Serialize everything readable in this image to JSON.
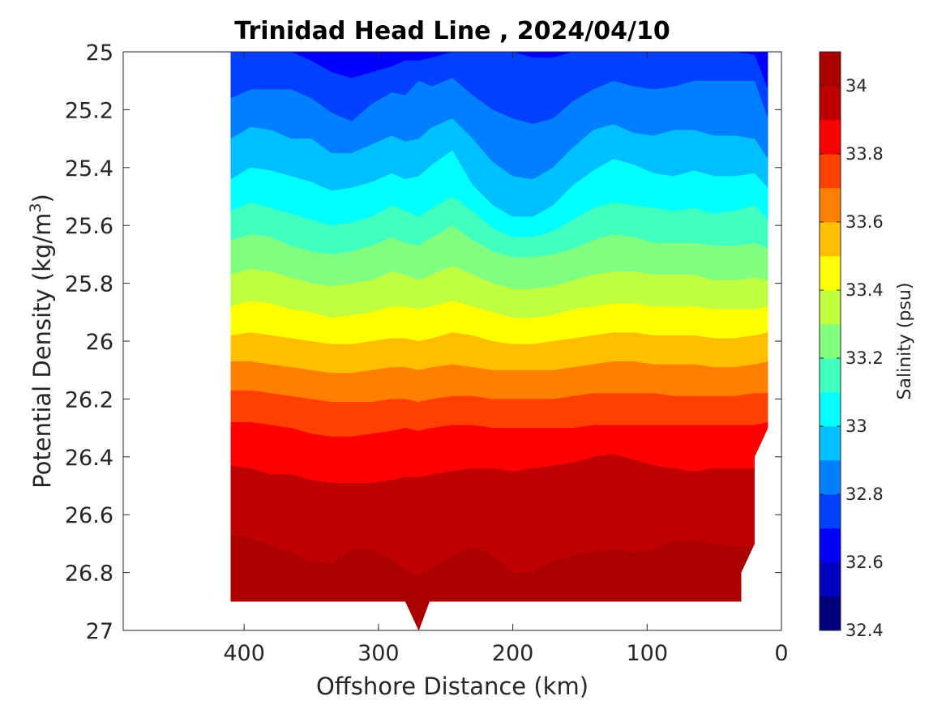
{
  "chart_data": {
    "type": "heatmap",
    "subtype": "filled-contour",
    "title": "Trinidad Head Line , 2024/04/10",
    "xlabel": "Offshore Distance (km)",
    "ylabel_main": "Potential Density (kg/m",
    "ylabel_sup": "3",
    "ylabel_close": ")",
    "x_reversed": true,
    "y_reversed": true,
    "xlim": [
      490,
      0
    ],
    "ylim": [
      25,
      27
    ],
    "xticks": [
      400,
      300,
      200,
      100,
      0
    ],
    "yticks": [
      25,
      25.2,
      25.4,
      25.6,
      25.8,
      26,
      26.2,
      26.4,
      26.6,
      26.8,
      27
    ],
    "data_extent_x": [
      410,
      10
    ],
    "data_bottom_density": 26.9,
    "colorbar": {
      "label": "Salinity (psu)",
      "levels": [
        32.4,
        32.5,
        32.6,
        32.7,
        32.8,
        32.9,
        33.0,
        33.1,
        33.2,
        33.3,
        33.4,
        33.5,
        33.6,
        33.7,
        33.8,
        33.9,
        34.0,
        34.1
      ],
      "ticks": [
        32.4,
        32.6,
        32.8,
        33,
        33.2,
        33.4,
        33.6,
        33.8,
        34
      ],
      "colors": [
        "#00007f",
        "#0000bf",
        "#0000ff",
        "#0040ff",
        "#0080ff",
        "#00bfff",
        "#00ffff",
        "#40ffbf",
        "#80ff80",
        "#bfff40",
        "#ffff00",
        "#ffbf00",
        "#ff8000",
        "#ff4000",
        "#ff0000",
        "#bf0000",
        "#aa0000"
      ]
    },
    "x_stations": [
      410,
      395,
      380,
      365,
      350,
      335,
      320,
      305,
      290,
      280,
      270,
      260,
      245,
      230,
      215,
      200,
      185,
      170,
      155,
      140,
      125,
      110,
      95,
      80,
      65,
      50,
      35,
      20,
      10
    ],
    "contours": [
      {
        "level": 32.7,
        "y": [
          25.0,
          25.0,
          25.0,
          25.0,
          25.03,
          25.07,
          25.09,
          25.07,
          25.05,
          25.03,
          25.03,
          25.02,
          25.0,
          25.0,
          25.0,
          25.0,
          25.02,
          25.02,
          25.0,
          25.0,
          25.0,
          25.0,
          25.0,
          25.0,
          25.0,
          25.0,
          25.0,
          25.01,
          25.13
        ]
      },
      {
        "level": 32.8,
        "y": [
          25.16,
          25.13,
          25.13,
          25.13,
          25.16,
          25.21,
          25.24,
          25.18,
          25.14,
          25.15,
          25.1,
          25.12,
          25.09,
          25.15,
          25.2,
          25.23,
          25.25,
          25.23,
          25.17,
          25.13,
          25.1,
          25.12,
          25.13,
          25.12,
          25.1,
          25.1,
          25.1,
          25.1,
          25.23
        ]
      },
      {
        "level": 32.9,
        "y": [
          25.3,
          25.26,
          25.27,
          25.3,
          25.3,
          25.35,
          25.35,
          25.32,
          25.29,
          25.31,
          25.3,
          25.26,
          25.23,
          25.3,
          25.38,
          25.43,
          25.44,
          25.4,
          25.33,
          25.27,
          25.25,
          25.28,
          25.29,
          25.27,
          25.27,
          25.29,
          25.29,
          25.3,
          25.37
        ]
      },
      {
        "level": 33.0,
        "y": [
          25.44,
          25.4,
          25.41,
          25.43,
          25.45,
          25.48,
          25.47,
          25.45,
          25.42,
          25.44,
          25.43,
          25.39,
          25.34,
          25.46,
          25.53,
          25.57,
          25.57,
          25.53,
          25.46,
          25.41,
          25.37,
          25.39,
          25.42,
          25.43,
          25.41,
          25.43,
          25.43,
          25.42,
          25.47
        ]
      },
      {
        "level": 33.1,
        "y": [
          25.55,
          25.52,
          25.54,
          25.56,
          25.58,
          25.6,
          25.59,
          25.57,
          25.53,
          25.55,
          25.57,
          25.54,
          25.5,
          25.55,
          25.61,
          25.64,
          25.64,
          25.62,
          25.58,
          25.54,
          25.52,
          25.53,
          25.54,
          25.55,
          25.54,
          25.56,
          25.55,
          25.53,
          25.58
        ]
      },
      {
        "level": 33.2,
        "y": [
          25.65,
          25.63,
          25.64,
          25.67,
          25.69,
          25.7,
          25.69,
          25.67,
          25.64,
          25.66,
          25.67,
          25.64,
          25.6,
          25.65,
          25.69,
          25.71,
          25.71,
          25.7,
          25.68,
          25.65,
          25.63,
          25.64,
          25.66,
          25.66,
          25.66,
          25.67,
          25.67,
          25.66,
          25.68
        ]
      },
      {
        "level": 33.3,
        "y": [
          25.77,
          25.75,
          25.76,
          25.78,
          25.8,
          25.81,
          25.8,
          25.79,
          25.76,
          25.77,
          25.79,
          25.77,
          25.74,
          25.77,
          25.8,
          25.82,
          25.82,
          25.81,
          25.79,
          25.77,
          25.76,
          25.76,
          25.77,
          25.77,
          25.77,
          25.79,
          25.79,
          25.78,
          25.79
        ]
      },
      {
        "level": 33.4,
        "y": [
          25.88,
          25.86,
          25.87,
          25.89,
          25.9,
          25.92,
          25.91,
          25.9,
          25.88,
          25.88,
          25.89,
          25.88,
          25.86,
          25.88,
          25.9,
          25.92,
          25.92,
          25.91,
          25.89,
          25.88,
          25.87,
          25.87,
          25.88,
          25.88,
          25.88,
          25.89,
          25.89,
          25.89,
          25.88
        ]
      },
      {
        "level": 33.5,
        "y": [
          25.98,
          25.97,
          25.98,
          25.99,
          26.0,
          26.01,
          26.01,
          26.0,
          25.99,
          25.99,
          26.0,
          25.99,
          25.97,
          25.98,
          26.0,
          26.01,
          26.01,
          26.0,
          25.99,
          25.98,
          25.97,
          25.97,
          25.98,
          25.98,
          25.98,
          25.99,
          25.99,
          25.98,
          25.97
        ]
      },
      {
        "level": 33.6,
        "y": [
          26.07,
          26.07,
          26.08,
          26.09,
          26.1,
          26.11,
          26.11,
          26.1,
          26.09,
          26.09,
          26.1,
          26.09,
          26.08,
          26.09,
          26.1,
          26.1,
          26.1,
          26.1,
          26.09,
          26.08,
          26.07,
          26.07,
          26.08,
          26.08,
          26.08,
          26.09,
          26.09,
          26.08,
          26.07
        ]
      },
      {
        "level": 33.7,
        "y": [
          26.17,
          26.17,
          26.18,
          26.19,
          26.2,
          26.21,
          26.21,
          26.21,
          26.2,
          26.2,
          26.21,
          26.2,
          26.19,
          26.19,
          26.2,
          26.2,
          26.2,
          26.2,
          26.19,
          26.18,
          26.18,
          26.18,
          26.18,
          26.19,
          26.19,
          26.19,
          26.19,
          26.18,
          26.18
        ]
      },
      {
        "level": 33.8,
        "y": [
          26.28,
          26.28,
          26.29,
          26.3,
          26.32,
          26.33,
          26.33,
          26.32,
          26.31,
          26.3,
          26.31,
          26.3,
          26.29,
          26.29,
          26.3,
          26.3,
          26.3,
          26.3,
          26.3,
          26.29,
          26.29,
          26.29,
          26.29,
          26.29,
          26.29,
          26.29,
          26.29,
          26.29,
          26.28
        ]
      },
      {
        "level": 33.9,
        "y": [
          26.43,
          26.44,
          26.46,
          26.46,
          26.48,
          26.49,
          26.49,
          26.49,
          26.48,
          26.47,
          26.47,
          26.46,
          26.45,
          26.44,
          26.44,
          26.45,
          26.44,
          26.43,
          26.42,
          26.4,
          26.39,
          26.41,
          26.43,
          26.44,
          26.45,
          26.44,
          26.44,
          26.44,
          26.44
        ]
      },
      {
        "level": 34.0,
        "y": [
          26.67,
          26.68,
          26.71,
          26.73,
          26.76,
          26.77,
          26.72,
          26.72,
          26.76,
          26.79,
          26.81,
          26.79,
          26.74,
          26.71,
          26.74,
          26.8,
          26.8,
          26.76,
          26.74,
          26.73,
          26.72,
          26.73,
          26.72,
          26.69,
          26.69,
          26.7,
          26.71,
          26.71,
          26.71
        ]
      }
    ]
  }
}
